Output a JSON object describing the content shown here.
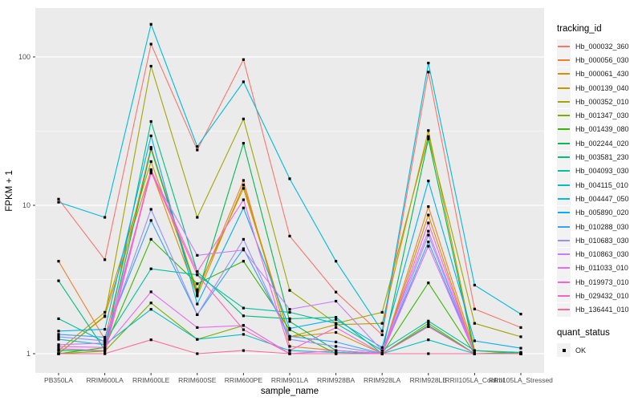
{
  "chart_data": {
    "type": "line",
    "title": "",
    "xlabel": "sample_name",
    "ylabel": "FPKM + 1",
    "y_scale": "log10",
    "ylim": [
      0.9,
      200
    ],
    "y_ticks": [
      "1",
      "10",
      "100"
    ],
    "grid": true,
    "panel_bg": "#EBEBEB",
    "grid_color": "#FFFFFF",
    "tick_label_color": "#4D4D4D",
    "legend_position": "right",
    "legend_title": "tracking_id",
    "quant_title": "quant_status",
    "quant_ok_label": "OK",
    "categories": [
      "PB350LA",
      "RRIM600LA",
      "RRIM600LE",
      "RRIM600SE",
      "RRIM600PE",
      "RRIM901LA",
      "RRIM928BA",
      "RRIM928LA",
      "RRIM928LE",
      "RRII105LA_Control",
      "RRII105LA_Stressed"
    ],
    "series": [
      {
        "name": "Hb_000032_360",
        "color": "#F8766D",
        "values": [
          11,
          4.3,
          122,
          23.6,
          96,
          6.2,
          2.6,
          1.34,
          79,
          2.0,
          1.5
        ]
      },
      {
        "name": "Hb_000056_030",
        "color": "#EA8331",
        "values": [
          4.2,
          1.25,
          24.6,
          2.6,
          14.7,
          1.12,
          1.05,
          1.0,
          9.8,
          1.05,
          1.0
        ]
      },
      {
        "name": "Hb_000061_430",
        "color": "#D89000",
        "values": [
          1.0,
          1.8,
          17.2,
          2.45,
          13.7,
          1.3,
          1.39,
          1.0,
          8.6,
          1.0,
          1.0
        ]
      },
      {
        "name": "Hb_000139_040",
        "color": "#C09B00",
        "values": [
          1.05,
          1.9,
          19.7,
          2.7,
          13.0,
          1.3,
          1.57,
          1.6,
          31.9,
          1.05,
          1.0
        ]
      },
      {
        "name": "Hb_000352_010",
        "color": "#A3A500",
        "values": [
          1.0,
          1.78,
          86.7,
          8.3,
          38.2,
          2.67,
          1.6,
          1.9,
          29.1,
          1.6,
          1.3
        ]
      },
      {
        "name": "Hb_001347_030",
        "color": "#7CAE00",
        "values": [
          1.0,
          1.04,
          2.2,
          1.25,
          1.55,
          1.0,
          1.0,
          1.0,
          1.6,
          1.0,
          1.0
        ]
      },
      {
        "name": "Hb_001439_080",
        "color": "#39B600",
        "values": [
          1.0,
          1.1,
          5.9,
          2.96,
          4.2,
          1.45,
          1.0,
          1.0,
          3.0,
          1.0,
          1.0
        ]
      },
      {
        "name": "Hb_002244_020",
        "color": "#00BB4E",
        "values": [
          1.05,
          1.05,
          24.0,
          2.5,
          26.2,
          1.65,
          1.05,
          1.0,
          28,
          1.0,
          1.0
        ]
      },
      {
        "name": "Hb_003581_230",
        "color": "#00BF7D",
        "values": [
          3.1,
          1.06,
          36.7,
          3.57,
          1.8,
          1.72,
          1.76,
          1.0,
          1.55,
          1.0,
          1.02
        ]
      },
      {
        "name": "Hb_004093_030",
        "color": "#00C1A3",
        "values": [
          1.72,
          1.2,
          3.73,
          3.4,
          2.03,
          1.9,
          1.6,
          1.05,
          1.66,
          1.05,
          1.02
        ]
      },
      {
        "name": "Hb_004115_010",
        "color": "#00BFC4",
        "values": [
          1.25,
          1.15,
          1.99,
          1.25,
          1.35,
          1.05,
          1.02,
          1.0,
          1.24,
          1.0,
          1.0
        ]
      },
      {
        "name": "Hb_004447_050",
        "color": "#00BBDA",
        "values": [
          10.5,
          8.3,
          166,
          24.9,
          68,
          15.1,
          4.2,
          1.42,
          91,
          2.9,
          1.85
        ]
      },
      {
        "name": "Hb_005890_020",
        "color": "#00B0F6",
        "values": [
          1.42,
          1.46,
          29.4,
          2.16,
          9.6,
          1.48,
          1.7,
          1.1,
          14.6,
          1.22,
          1.09
        ]
      },
      {
        "name": "Hb_010288_030",
        "color": "#35A2FF",
        "values": [
          1.35,
          1.29,
          7.9,
          1.83,
          5.1,
          1.31,
          1.2,
          1.0,
          5.67,
          1.0,
          1.0
        ]
      },
      {
        "name": "Hb_010683_030",
        "color": "#9590FF",
        "values": [
          1.3,
          1.22,
          9.4,
          1.83,
          5.9,
          1.25,
          1.12,
          1.0,
          6.3,
          1.0,
          1.0
        ]
      },
      {
        "name": "Hb_010863_030",
        "color": "#C77CFF",
        "values": [
          1.15,
          1.18,
          16.5,
          4.6,
          5.0,
          1.99,
          2.26,
          1.05,
          6.7,
          1.0,
          1.0
        ]
      },
      {
        "name": "Hb_011033_010",
        "color": "#E76BF3",
        "values": [
          1.12,
          1.1,
          2.61,
          1.5,
          1.55,
          1.0,
          1.05,
          1.0,
          5.3,
          1.0,
          1.0
        ]
      },
      {
        "name": "Hb_019973_010",
        "color": "#FA62DB",
        "values": [
          1.08,
          1.05,
          17.4,
          3.57,
          10.9,
          1.05,
          1.5,
          1.0,
          7.6,
          1.0,
          1.0
        ]
      },
      {
        "name": "Hb_029432_010",
        "color": "#FF62BC",
        "values": [
          1.0,
          1.0,
          16.8,
          3.4,
          1.45,
          1.0,
          1.0,
          1.0,
          1.52,
          1.0,
          1.0
        ]
      },
      {
        "name": "Hb_136441_010",
        "color": "#FF6A98",
        "values": [
          1.0,
          1.0,
          1.24,
          1.0,
          1.05,
          1.0,
          1.0,
          1.0,
          1.0,
          1.0,
          1.0
        ]
      }
    ]
  }
}
